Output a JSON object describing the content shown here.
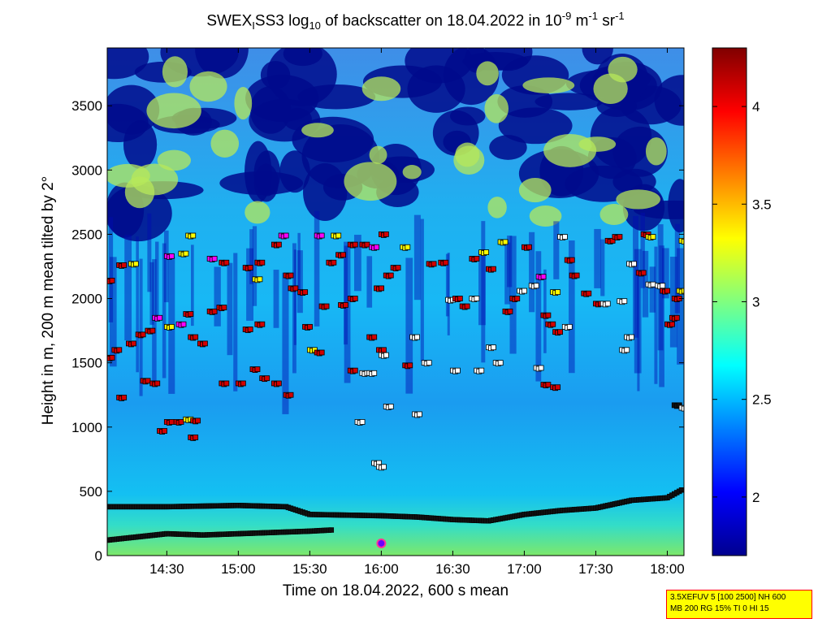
{
  "title": {
    "prefix": "SWEX",
    "sub1": "I",
    "mid1": "SS3 log",
    "sub2": "10",
    "mid2": " of backscatter on 18.04.2022 in 10",
    "sup1": "-9",
    "mid3": " m",
    "sup2": "-1",
    "mid4": " sr",
    "sup3": "-1"
  },
  "info_box": {
    "line1": "3.5XEFUV 5 [100 2500] NH 600",
    "line2": "MB 200 RG 15% TI 0 HI 15"
  },
  "chart_data": {
    "type": "heatmap",
    "xlabel": "Time on 18.04.2022, 600 s mean",
    "ylabel": "Height in m, 200 m mean tilted by 2°",
    "xlim": [
      "14:05",
      "18:07"
    ],
    "ylim": [
      0,
      3950
    ],
    "x_ticks": [
      "14:30",
      "15:00",
      "15:30",
      "16:00",
      "16:30",
      "17:00",
      "17:30",
      "18:00"
    ],
    "y_ticks": [
      0,
      500,
      1000,
      1500,
      2000,
      2500,
      3000,
      3500
    ],
    "colorbar": {
      "range": [
        1.7,
        4.3
      ],
      "ticks": [
        2,
        2.5,
        3,
        3.5,
        4
      ],
      "colormap": "jet"
    },
    "mixing_layer_black": [
      {
        "t": "14:05",
        "h": 380
      },
      {
        "t": "14:30",
        "h": 380
      },
      {
        "t": "15:00",
        "h": 390
      },
      {
        "t": "15:20",
        "h": 380
      },
      {
        "t": "15:30",
        "h": 320
      },
      {
        "t": "15:45",
        "h": 315
      },
      {
        "t": "16:00",
        "h": 310
      },
      {
        "t": "16:15",
        "h": 300
      },
      {
        "t": "16:30",
        "h": 280
      },
      {
        "t": "16:45",
        "h": 270
      },
      {
        "t": "17:00",
        "h": 320
      },
      {
        "t": "17:15",
        "h": 350
      },
      {
        "t": "17:30",
        "h": 370
      },
      {
        "t": "17:45",
        "h": 430
      },
      {
        "t": "18:00",
        "h": 450
      },
      {
        "t": "18:07",
        "h": 520
      }
    ],
    "surface_layer_black": [
      {
        "t": "14:05",
        "h": 120
      },
      {
        "t": "14:15",
        "h": 140
      },
      {
        "t": "14:30",
        "h": 170
      },
      {
        "t": "14:45",
        "h": 160
      },
      {
        "t": "15:00",
        "h": 170
      },
      {
        "t": "15:15",
        "h": 180
      },
      {
        "t": "15:30",
        "h": 190
      },
      {
        "t": "15:40",
        "h": 200
      }
    ],
    "layer_markers": [
      {
        "t": "14:05",
        "h": 1540,
        "c": "red"
      },
      {
        "t": "14:08",
        "h": 1600,
        "c": "red"
      },
      {
        "t": "14:10",
        "h": 1230,
        "c": "red"
      },
      {
        "t": "14:05",
        "h": 2140,
        "c": "red"
      },
      {
        "t": "14:10",
        "h": 2260,
        "c": "red"
      },
      {
        "t": "14:15",
        "h": 2270,
        "c": "yellow"
      },
      {
        "t": "14:14",
        "h": 1650,
        "c": "red"
      },
      {
        "t": "14:18",
        "h": 1720,
        "c": "red"
      },
      {
        "t": "14:22",
        "h": 1750,
        "c": "red"
      },
      {
        "t": "14:25",
        "h": 1850,
        "c": "magenta"
      },
      {
        "t": "14:20",
        "h": 1360,
        "c": "red"
      },
      {
        "t": "14:24",
        "h": 1340,
        "c": "red"
      },
      {
        "t": "14:27",
        "h": 970,
        "c": "red"
      },
      {
        "t": "14:30",
        "h": 1040,
        "c": "red"
      },
      {
        "t": "14:34",
        "h": 1040,
        "c": "red"
      },
      {
        "t": "14:38",
        "h": 1060,
        "c": "yellow"
      },
      {
        "t": "14:41",
        "h": 1050,
        "c": "red"
      },
      {
        "t": "14:40",
        "h": 920,
        "c": "red"
      },
      {
        "t": "14:30",
        "h": 1780,
        "c": "yellow"
      },
      {
        "t": "14:35",
        "h": 1800,
        "c": "magenta"
      },
      {
        "t": "14:38",
        "h": 1880,
        "c": "red"
      },
      {
        "t": "14:40",
        "h": 1700,
        "c": "red"
      },
      {
        "t": "14:44",
        "h": 1650,
        "c": "red"
      },
      {
        "t": "14:48",
        "h": 1900,
        "c": "red"
      },
      {
        "t": "14:52",
        "h": 1930,
        "c": "red"
      },
      {
        "t": "14:30",
        "h": 2330,
        "c": "magenta"
      },
      {
        "t": "14:36",
        "h": 2350,
        "c": "yellow"
      },
      {
        "t": "14:39",
        "h": 2490,
        "c": "yellow"
      },
      {
        "t": "14:48",
        "h": 2310,
        "c": "magenta"
      },
      {
        "t": "14:53",
        "h": 2280,
        "c": "red"
      },
      {
        "t": "14:53",
        "h": 1340,
        "c": "red"
      },
      {
        "t": "15:00",
        "h": 1340,
        "c": "red"
      },
      {
        "t": "15:06",
        "h": 1450,
        "c": "red"
      },
      {
        "t": "15:03",
        "h": 1760,
        "c": "red"
      },
      {
        "t": "15:08",
        "h": 1800,
        "c": "red"
      },
      {
        "t": "15:03",
        "h": 2240,
        "c": "red"
      },
      {
        "t": "15:07",
        "h": 2150,
        "c": "yellow"
      },
      {
        "t": "15:08",
        "h": 2280,
        "c": "red"
      },
      {
        "t": "15:10",
        "h": 1380,
        "c": "red"
      },
      {
        "t": "15:15",
        "h": 1340,
        "c": "red"
      },
      {
        "t": "15:20",
        "h": 1250,
        "c": "red"
      },
      {
        "t": "15:15",
        "h": 2420,
        "c": "red"
      },
      {
        "t": "15:18",
        "h": 2490,
        "c": "magenta"
      },
      {
        "t": "15:20",
        "h": 2180,
        "c": "red"
      },
      {
        "t": "15:22",
        "h": 2080,
        "c": "red"
      },
      {
        "t": "15:26",
        "h": 2050,
        "c": "red"
      },
      {
        "t": "15:28",
        "h": 1780,
        "c": "red"
      },
      {
        "t": "15:30",
        "h": 1600,
        "c": "yellow"
      },
      {
        "t": "15:33",
        "h": 1580,
        "c": "red"
      },
      {
        "t": "15:33",
        "h": 2490,
        "c": "magenta"
      },
      {
        "t": "15:40",
        "h": 2490,
        "c": "yellow"
      },
      {
        "t": "15:38",
        "h": 2280,
        "c": "red"
      },
      {
        "t": "15:42",
        "h": 2340,
        "c": "red"
      },
      {
        "t": "15:35",
        "h": 1940,
        "c": "red"
      },
      {
        "t": "15:43",
        "h": 1950,
        "c": "red"
      },
      {
        "t": "15:47",
        "h": 2000,
        "c": "red"
      },
      {
        "t": "15:47",
        "h": 2420,
        "c": "red"
      },
      {
        "t": "15:52",
        "h": 2420,
        "c": "red"
      },
      {
        "t": "15:56",
        "h": 2400,
        "c": "magenta"
      },
      {
        "t": "15:47",
        "h": 1440,
        "c": "red"
      },
      {
        "t": "15:52",
        "h": 1420,
        "c": "white"
      },
      {
        "t": "15:55",
        "h": 1420,
        "c": "white"
      },
      {
        "t": "15:50",
        "h": 1040,
        "c": "white"
      },
      {
        "t": "15:55",
        "h": 1700,
        "c": "red"
      },
      {
        "t": "15:59",
        "h": 1600,
        "c": "red"
      },
      {
        "t": "15:58",
        "h": 2080,
        "c": "red"
      },
      {
        "t": "15:57",
        "h": 720,
        "c": "white"
      },
      {
        "t": "15:59",
        "h": 690,
        "c": "white"
      },
      {
        "t": "16:00",
        "h": 1560,
        "c": "white"
      },
      {
        "t": "16:00",
        "h": 2500,
        "c": "red"
      },
      {
        "t": "16:02",
        "h": 2180,
        "c": "red"
      },
      {
        "t": "16:02",
        "h": 1160,
        "c": "white"
      },
      {
        "t": "16:05",
        "h": 2240,
        "c": "red"
      },
      {
        "t": "16:09",
        "h": 2400,
        "c": "yellow"
      },
      {
        "t": "16:10",
        "h": 1480,
        "c": "red"
      },
      {
        "t": "16:13",
        "h": 1700,
        "c": "white"
      },
      {
        "t": "16:14",
        "h": 1100,
        "c": "white"
      },
      {
        "t": "16:18",
        "h": 1500,
        "c": "white"
      },
      {
        "t": "16:20",
        "h": 2270,
        "c": "red"
      },
      {
        "t": "16:25",
        "h": 2280,
        "c": "red"
      },
      {
        "t": "16:28",
        "h": 1990,
        "c": "white"
      },
      {
        "t": "16:31",
        "h": 2000,
        "c": "red"
      },
      {
        "t": "16:34",
        "h": 1940,
        "c": "red"
      },
      {
        "t": "16:38",
        "h": 2000,
        "c": "white"
      },
      {
        "t": "16:30",
        "h": 1440,
        "c": "white"
      },
      {
        "t": "16:40",
        "h": 1440,
        "c": "white"
      },
      {
        "t": "16:38",
        "h": 2310,
        "c": "red"
      },
      {
        "t": "16:42",
        "h": 2360,
        "c": "yellow"
      },
      {
        "t": "16:45",
        "h": 2230,
        "c": "red"
      },
      {
        "t": "16:45",
        "h": 1620,
        "c": "white"
      },
      {
        "t": "16:48",
        "h": 1500,
        "c": "white"
      },
      {
        "t": "16:50",
        "h": 2440,
        "c": "yellow"
      },
      {
        "t": "16:52",
        "h": 1900,
        "c": "red"
      },
      {
        "t": "16:55",
        "h": 2000,
        "c": "red"
      },
      {
        "t": "16:58",
        "h": 2060,
        "c": "white"
      },
      {
        "t": "17:00",
        "h": 2400,
        "c": "red"
      },
      {
        "t": "17:03",
        "h": 2100,
        "c": "white"
      },
      {
        "t": "17:06",
        "h": 2170,
        "c": "magenta"
      },
      {
        "t": "17:05",
        "h": 1460,
        "c": "white"
      },
      {
        "t": "17:08",
        "h": 1330,
        "c": "red"
      },
      {
        "t": "17:12",
        "h": 1310,
        "c": "red"
      },
      {
        "t": "17:08",
        "h": 1870,
        "c": "red"
      },
      {
        "t": "17:10",
        "h": 1800,
        "c": "red"
      },
      {
        "t": "17:13",
        "h": 1740,
        "c": "red"
      },
      {
        "t": "17:17",
        "h": 1780,
        "c": "white"
      },
      {
        "t": "17:15",
        "h": 2480,
        "c": "white"
      },
      {
        "t": "17:12",
        "h": 2050,
        "c": "yellow"
      },
      {
        "t": "17:18",
        "h": 2300,
        "c": "red"
      },
      {
        "t": "17:20",
        "h": 2180,
        "c": "red"
      },
      {
        "t": "17:25",
        "h": 2040,
        "c": "red"
      },
      {
        "t": "17:30",
        "h": 1960,
        "c": "red"
      },
      {
        "t": "17:33",
        "h": 1960,
        "c": "white"
      },
      {
        "t": "17:35",
        "h": 2450,
        "c": "red"
      },
      {
        "t": "17:38",
        "h": 2480,
        "c": "red"
      },
      {
        "t": "17:40",
        "h": 1980,
        "c": "white"
      },
      {
        "t": "17:41",
        "h": 1600,
        "c": "white"
      },
      {
        "t": "17:43",
        "h": 1700,
        "c": "white"
      },
      {
        "t": "17:44",
        "h": 2270,
        "c": "white"
      },
      {
        "t": "17:48",
        "h": 2200,
        "c": "red"
      },
      {
        "t": "17:50",
        "h": 2500,
        "c": "red"
      },
      {
        "t": "17:52",
        "h": 2480,
        "c": "yellow"
      },
      {
        "t": "17:52",
        "h": 2110,
        "c": "white"
      },
      {
        "t": "17:56",
        "h": 2100,
        "c": "white"
      },
      {
        "t": "17:58",
        "h": 2060,
        "c": "red"
      },
      {
        "t": "18:00",
        "h": 1800,
        "c": "red"
      },
      {
        "t": "18:02",
        "h": 1850,
        "c": "red"
      },
      {
        "t": "18:03",
        "h": 2000,
        "c": "red"
      },
      {
        "t": "18:05",
        "h": 2060,
        "c": "yellow"
      },
      {
        "t": "18:03",
        "h": 1170,
        "c": "black"
      },
      {
        "t": "18:06",
        "h": 1150,
        "c": "white"
      },
      {
        "t": "18:06",
        "h": 2450,
        "c": "yellow"
      }
    ]
  }
}
